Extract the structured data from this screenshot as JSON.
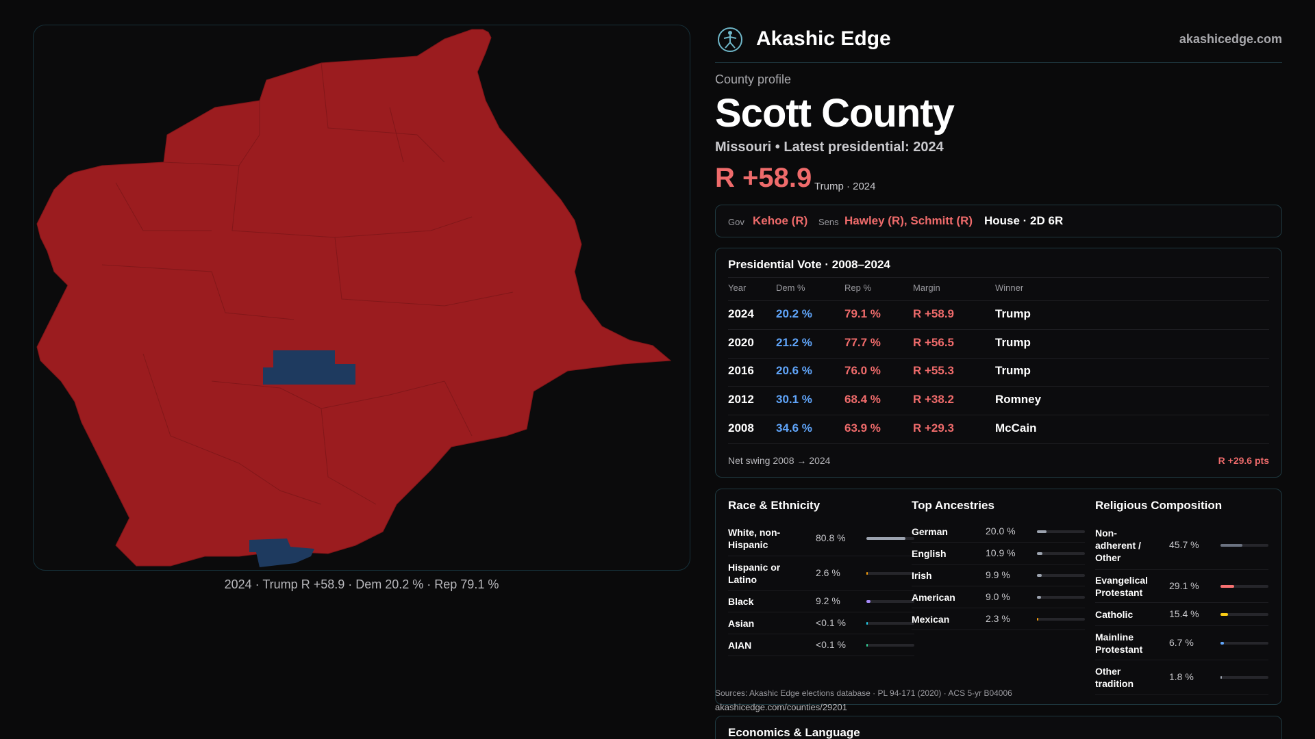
{
  "map": {
    "caption": "2024 · Trump R +58.9 · Dem 20.2 % · Rep 79.1 %",
    "colors": {
      "rep": "#9b1c1f",
      "dem": "#1e3a5f",
      "background": "#0b0b0c"
    }
  },
  "header": {
    "brand": "Akashic Edge",
    "site": "akashicedge.com",
    "logo_icon": "network-figure-icon"
  },
  "profile": {
    "kicker": "County profile",
    "county": "Scott County",
    "subline": "Missouri • Latest presidential: 2024",
    "margin": "R +58.9",
    "margin_note": "Trump · 2024"
  },
  "officials": {
    "gov_label": "Gov",
    "gov": "Kehoe (R)",
    "sens_label": "Sens",
    "sens": "Hawley (R), Schmitt (R)",
    "house": "House · 2D 6R"
  },
  "presidential": {
    "title": "Presidential Vote · 2008–2024",
    "headers": [
      "Year",
      "Dem %",
      "Rep %",
      "Margin",
      "Winner"
    ],
    "rows": [
      {
        "year": "2024",
        "dem": "20.2 %",
        "rep": "79.1 %",
        "margin": "R +58.9",
        "winner": "Trump"
      },
      {
        "year": "2020",
        "dem": "21.2 %",
        "rep": "77.7 %",
        "margin": "R +56.5",
        "winner": "Trump"
      },
      {
        "year": "2016",
        "dem": "20.6 %",
        "rep": "76.0 %",
        "margin": "R +55.3",
        "winner": "Trump"
      },
      {
        "year": "2012",
        "dem": "30.1 %",
        "rep": "68.4 %",
        "margin": "R +38.2",
        "winner": "Romney"
      },
      {
        "year": "2008",
        "dem": "34.6 %",
        "rep": "63.9 %",
        "margin": "R +29.3",
        "winner": "McCain"
      }
    ],
    "swing_label": "Net swing 2008 → 2024",
    "swing_value": "R +29.6 pts"
  },
  "race": {
    "title": "Race & Ethnicity",
    "items": [
      {
        "name": "White, non-\nHispanic",
        "pct": "80.8 %",
        "value": 80.8,
        "color": "#9ca3af"
      },
      {
        "name": "Hispanic or\nLatino",
        "pct": "2.6 %",
        "value": 2.6,
        "color": "#f59e0b"
      },
      {
        "name": "Black",
        "pct": "9.2 %",
        "value": 9.2,
        "color": "#a78bfa"
      },
      {
        "name": "Asian",
        "pct": "<0.1 %",
        "value": 0.1,
        "color": "#22d3ee"
      },
      {
        "name": "AIAN",
        "pct": "<0.1 %",
        "value": 0.1,
        "color": "#34d399"
      }
    ]
  },
  "ancestry": {
    "title": "Top Ancestries",
    "items": [
      {
        "name": "German",
        "pct": "20.0 %",
        "value": 20.0,
        "color": "#9ca3af"
      },
      {
        "name": "English",
        "pct": "10.9 %",
        "value": 10.9,
        "color": "#9ca3af"
      },
      {
        "name": "Irish",
        "pct": "9.9 %",
        "value": 9.9,
        "color": "#9ca3af"
      },
      {
        "name": "American",
        "pct": "9.0 %",
        "value": 9.0,
        "color": "#9ca3af"
      },
      {
        "name": "Mexican",
        "pct": "2.3 %",
        "value": 2.3,
        "color": "#f59e0b"
      }
    ]
  },
  "religion": {
    "title": "Religious Composition",
    "items": [
      {
        "name": "Non-\nadherent /\nOther",
        "pct": "45.7 %",
        "value": 45.7,
        "color": "#6b7280"
      },
      {
        "name": "Evangelical\nProtestant",
        "pct": "29.1 %",
        "value": 29.1,
        "color": "#f87171"
      },
      {
        "name": "Catholic",
        "pct": "15.4 %",
        "value": 15.4,
        "color": "#facc15"
      },
      {
        "name": "Mainline\nProtestant",
        "pct": "6.7 %",
        "value": 6.7,
        "color": "#60a5fa"
      },
      {
        "name": "Other\ntradition",
        "pct": "1.8 %",
        "value": 1.8,
        "color": "#9ca3af"
      }
    ]
  },
  "sources": {
    "text": "Sources: Akashic Edge elections database · PL 94-171 (2020) · ACS 5-yr B04006",
    "url": "akashicedge.com/counties/29201"
  },
  "economics": {
    "title": "Economics & Language"
  }
}
